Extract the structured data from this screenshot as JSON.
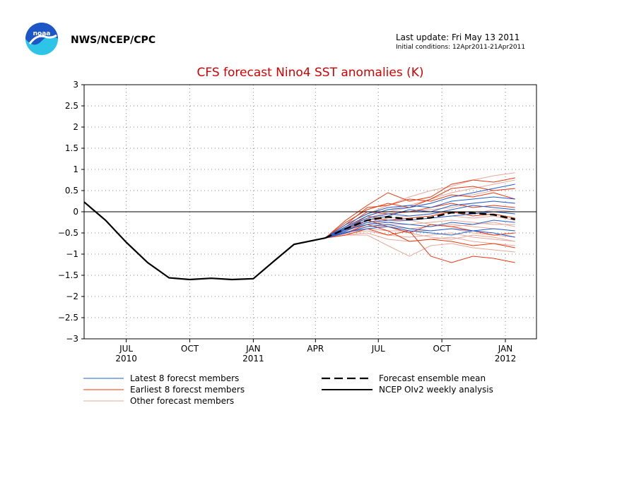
{
  "header": {
    "agency": "NWS/NCEP/CPC",
    "logo_text": "noaa",
    "last_update": "Last update: Fri May 13 2011",
    "initial_conditions": "Initial conditions: 12Apr2011-21Apr2011"
  },
  "colors": {
    "title": "#d40000",
    "latest": "#1f5fd0",
    "earliest": "#e8380f",
    "other": "#e6a99a",
    "observed": "#000000",
    "mean": "#000000",
    "logo_blue": "#1e56c8",
    "logo_sky": "#2ec4e8"
  },
  "chart_data": {
    "type": "line",
    "title": "CFS forecast Nino4 SST anomalies (K)",
    "xlabel": "",
    "ylabel": "",
    "ylim": [
      -3,
      3
    ],
    "yticks": [
      -3,
      -2.5,
      -2,
      -1.5,
      -1,
      -0.5,
      0,
      0.5,
      1,
      1.5,
      2,
      2.5,
      3
    ],
    "ytick_labels": [
      "−3",
      "−2.5",
      "−2",
      "−1.5",
      "−1",
      "−0.5",
      "0",
      "0.5",
      "1",
      "1.5",
      "2",
      "2.5",
      "3"
    ],
    "xlim": [
      "2010-05-01",
      "2012-02-15"
    ],
    "xticks": [
      {
        "date": "2010-07-01",
        "label": "JUL",
        "year": "2010"
      },
      {
        "date": "2010-10-01",
        "label": "OCT",
        "year": ""
      },
      {
        "date": "2011-01-01",
        "label": "JAN",
        "year": "2011"
      },
      {
        "date": "2011-04-01",
        "label": "APR",
        "year": ""
      },
      {
        "date": "2011-07-01",
        "label": "JUL",
        "year": ""
      },
      {
        "date": "2011-10-01",
        "label": "OCT",
        "year": ""
      },
      {
        "date": "2012-01-01",
        "label": "JAN",
        "year": "2012"
      }
    ],
    "grid": true,
    "zero_line": true,
    "legend_position": "bottom",
    "legend": {
      "latest": "Latest 8 forecst members",
      "earliest": "Earliest 8 forecst members",
      "other": "Other forecast members",
      "mean": "Forecast ensemble mean",
      "observed": "NCEP OIv2 weekly analysis"
    },
    "forecast_dates": [
      "2011-04-15",
      "2011-05-15",
      "2011-06-15",
      "2011-07-15",
      "2011-08-15",
      "2011-09-15",
      "2011-10-15",
      "2011-11-15",
      "2011-12-15",
      "2012-01-15"
    ],
    "observed": {
      "name": "NCEP OIv2 weekly analysis",
      "x": [
        "2010-05-01",
        "2010-06-01",
        "2010-07-01",
        "2010-08-01",
        "2010-09-01",
        "2010-10-01",
        "2010-11-01",
        "2010-12-01",
        "2011-01-01",
        "2011-02-01",
        "2011-03-01",
        "2011-04-15"
      ],
      "y": [
        0.23,
        -0.2,
        -0.72,
        -1.2,
        -1.56,
        -1.6,
        -1.57,
        -1.6,
        -1.58,
        -1.15,
        -0.77,
        -0.62
      ]
    },
    "ensemble_mean": {
      "name": "Forecast ensemble mean",
      "y": [
        -0.62,
        -0.4,
        -0.2,
        -0.12,
        -0.18,
        -0.14,
        -0.02,
        -0.03,
        -0.07,
        -0.18
      ]
    },
    "latest_members": [
      [
        -0.62,
        -0.35,
        -0.1,
        0.05,
        0.1,
        0.2,
        0.35,
        0.45,
        0.55,
        0.65
      ],
      [
        -0.62,
        -0.3,
        -0.05,
        0.1,
        0.15,
        0.1,
        0.25,
        0.3,
        0.35,
        0.3
      ],
      [
        -0.62,
        -0.4,
        -0.2,
        -0.1,
        0.05,
        0.0,
        0.15,
        0.2,
        0.25,
        0.2
      ],
      [
        -0.62,
        -0.38,
        -0.15,
        -0.05,
        -0.1,
        -0.05,
        0.05,
        0.15,
        0.1,
        0.05
      ],
      [
        -0.62,
        -0.45,
        -0.25,
        -0.2,
        -0.2,
        -0.15,
        -0.1,
        -0.05,
        0.0,
        -0.05
      ],
      [
        -0.62,
        -0.42,
        -0.3,
        -0.25,
        -0.3,
        -0.35,
        -0.25,
        -0.3,
        -0.2,
        -0.25
      ],
      [
        -0.62,
        -0.5,
        -0.35,
        -0.3,
        -0.4,
        -0.45,
        -0.4,
        -0.45,
        -0.4,
        -0.45
      ],
      [
        -0.62,
        -0.48,
        -0.4,
        -0.35,
        -0.45,
        -0.5,
        -0.55,
        -0.45,
        -0.5,
        -0.6
      ]
    ],
    "earliest_members": [
      [
        -0.62,
        -0.2,
        0.15,
        0.45,
        0.25,
        0.35,
        0.65,
        0.75,
        0.7,
        0.8
      ],
      [
        -0.62,
        -0.25,
        0.05,
        0.2,
        0.1,
        0.3,
        0.55,
        0.6,
        0.5,
        0.55
      ],
      [
        -0.62,
        -0.3,
        0.1,
        0.15,
        0.3,
        0.25,
        0.4,
        0.35,
        0.45,
        0.3
      ],
      [
        -0.62,
        -0.35,
        0.0,
        -0.05,
        0.0,
        0.1,
        0.2,
        0.1,
        0.15,
        0.1
      ],
      [
        -0.62,
        -0.4,
        -0.1,
        -0.2,
        -0.15,
        -0.1,
        0.0,
        -0.1,
        -0.05,
        -0.15
      ],
      [
        -0.62,
        -0.45,
        -0.2,
        -0.35,
        -0.5,
        -0.3,
        -0.35,
        -0.45,
        -0.55,
        -0.5
      ],
      [
        -0.62,
        -0.5,
        -0.3,
        -0.45,
        -0.7,
        -0.65,
        -0.7,
        -0.8,
        -0.75,
        -0.85
      ],
      [
        -0.62,
        -0.55,
        -0.4,
        -0.55,
        -0.45,
        -1.05,
        -1.2,
        -1.05,
        -1.1,
        -1.2
      ]
    ],
    "other_members": [
      [
        -0.62,
        -0.3,
        -0.05,
        0.15,
        0.35,
        0.5,
        0.6,
        0.75,
        0.85,
        0.92
      ],
      [
        -0.62,
        -0.35,
        -0.1,
        0.05,
        0.15,
        0.3,
        0.45,
        0.55,
        0.65,
        0.75
      ],
      [
        -0.62,
        -0.4,
        -0.15,
        0.0,
        0.1,
        0.2,
        0.35,
        0.4,
        0.5,
        0.55
      ],
      [
        -0.62,
        -0.42,
        -0.2,
        -0.05,
        0.0,
        0.05,
        0.1,
        0.2,
        0.25,
        0.2
      ],
      [
        -0.62,
        -0.45,
        -0.25,
        -0.15,
        -0.1,
        -0.05,
        0.0,
        -0.05,
        0.05,
        0.0
      ],
      [
        -0.62,
        -0.45,
        -0.3,
        -0.2,
        -0.2,
        -0.15,
        -0.1,
        -0.15,
        -0.1,
        -0.2
      ],
      [
        -0.62,
        -0.48,
        -0.35,
        -0.3,
        -0.3,
        -0.25,
        -0.2,
        -0.25,
        -0.3,
        -0.3
      ],
      [
        -0.62,
        -0.5,
        -0.35,
        -0.35,
        -0.4,
        -0.35,
        -0.3,
        -0.35,
        -0.4,
        -0.45
      ],
      [
        -0.62,
        -0.5,
        -0.4,
        -0.45,
        -0.45,
        -0.45,
        -0.4,
        -0.5,
        -0.55,
        -0.6
      ],
      [
        -0.62,
        -0.52,
        -0.45,
        -0.55,
        -0.6,
        -0.55,
        -0.5,
        -0.6,
        -0.65,
        -0.7
      ],
      [
        -0.62,
        -0.55,
        -0.5,
        -0.65,
        -0.7,
        -0.65,
        -0.6,
        -0.7,
        -0.75,
        -0.8
      ],
      [
        -0.62,
        -0.55,
        -0.55,
        -0.8,
        -1.05,
        -0.8,
        -0.75,
        -0.85,
        -0.9,
        -0.95
      ],
      [
        -0.62,
        -0.4,
        -0.25,
        -0.35,
        -0.5,
        -0.6,
        -0.65,
        -0.55,
        -0.6,
        -0.7
      ],
      [
        -0.62,
        -0.35,
        -0.15,
        -0.25,
        -0.2,
        -0.3,
        -0.35,
        -0.3,
        -0.25,
        -0.35
      ]
    ]
  }
}
